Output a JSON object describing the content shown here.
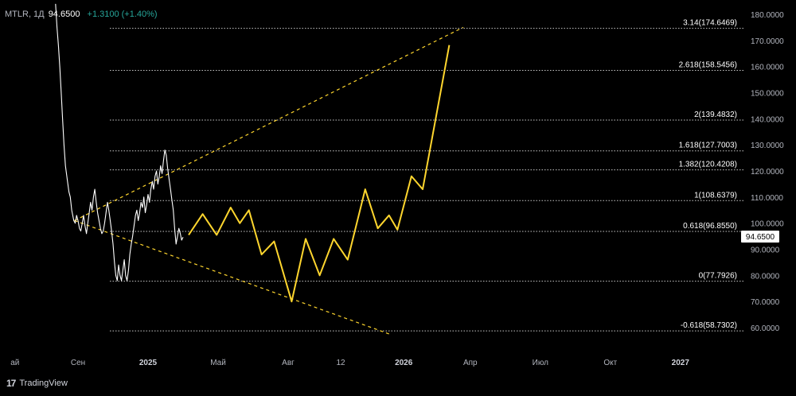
{
  "header": {
    "symbol": "MTLR, 1Д",
    "price": "94.6500",
    "change": "+1.3100 (+1.40%)"
  },
  "brand": {
    "name": "TradingView",
    "logo_icon": "tradingview-logo-icon"
  },
  "last_price_badge": "94.6500",
  "colors": {
    "background": "#000000",
    "price_line": "#ffffff",
    "forecast_line": "#ffd62e",
    "fib_line": "#c8c8c8",
    "axis_text": "#b2b5be"
  },
  "chart_data": {
    "type": "line",
    "y_axis": {
      "range": [
        54,
        183
      ],
      "ticks": [
        "180.0000",
        "170.0000",
        "160.0000",
        "150.0000",
        "140.0000",
        "130.0000",
        "120.0000",
        "110.0000",
        "100.0000",
        "90.0000",
        "80.0000",
        "70.0000",
        "60.0000"
      ]
    },
    "x_axis": {
      "ticks": [
        {
          "label": "ай",
          "pos": 0.1
        },
        {
          "label": "Сен",
          "pos": 1.0
        },
        {
          "label": "2025",
          "pos": 2.0
        },
        {
          "label": "Май",
          "pos": 3.0
        },
        {
          "label": "Авг",
          "pos": 4.0
        },
        {
          "label": "12",
          "pos": 4.75
        },
        {
          "label": "2026",
          "pos": 5.65
        },
        {
          "label": "Апр",
          "pos": 6.6
        },
        {
          "label": "Июл",
          "pos": 7.6
        },
        {
          "label": "Окт",
          "pos": 8.6
        },
        {
          "label": "2027",
          "pos": 9.6
        }
      ]
    },
    "fib_levels": [
      {
        "label": "3.14(174.6469)",
        "value": 174.6469
      },
      {
        "label": "2.618(158.5456)",
        "value": 158.5456
      },
      {
        "label": "2(139.4832)",
        "value": 139.4832
      },
      {
        "label": "1.618(127.7003)",
        "value": 127.7003
      },
      {
        "label": "1.382(120.4208)",
        "value": 120.4208
      },
      {
        "label": "1(108.6379)",
        "value": 108.6379
      },
      {
        "label": "0.618(96.8550)",
        "value": 96.855
      },
      {
        "label": "0(77.7926)",
        "value": 77.7926
      },
      {
        "label": "-0.618(58.7302)",
        "value": 58.7302
      }
    ],
    "series": [
      {
        "kind": "price",
        "points": [
          [
            0.68,
            184
          ],
          [
            0.7,
            175
          ],
          [
            0.72,
            168
          ],
          [
            0.74,
            160
          ],
          [
            0.76,
            150
          ],
          [
            0.78,
            140
          ],
          [
            0.8,
            130
          ],
          [
            0.82,
            122
          ],
          [
            0.85,
            116
          ],
          [
            0.87,
            112
          ],
          [
            0.89,
            110
          ],
          [
            0.91,
            105
          ],
          [
            0.94,
            101
          ],
          [
            0.96,
            100
          ],
          [
            0.98,
            103
          ],
          [
            1.0,
            101
          ],
          [
            1.02,
            98
          ],
          [
            1.04,
            97
          ],
          [
            1.06,
            100
          ],
          [
            1.08,
            103
          ],
          [
            1.1,
            99
          ],
          [
            1.12,
            96
          ],
          [
            1.14,
            100
          ],
          [
            1.16,
            104
          ],
          [
            1.18,
            108
          ],
          [
            1.2,
            105
          ],
          [
            1.22,
            110
          ],
          [
            1.24,
            113
          ],
          [
            1.26,
            108
          ],
          [
            1.28,
            104
          ],
          [
            1.3,
            101
          ],
          [
            1.32,
            98
          ],
          [
            1.34,
            96
          ],
          [
            1.36,
            97
          ],
          [
            1.38,
            100
          ],
          [
            1.4,
            104
          ],
          [
            1.42,
            108
          ],
          [
            1.44,
            105
          ],
          [
            1.46,
            101
          ],
          [
            1.48,
            97
          ],
          [
            1.5,
            92
          ],
          [
            1.52,
            85
          ],
          [
            1.54,
            80
          ],
          [
            1.56,
            78
          ],
          [
            1.58,
            84
          ],
          [
            1.6,
            80
          ],
          [
            1.62,
            78
          ],
          [
            1.64,
            82
          ],
          [
            1.66,
            86
          ],
          [
            1.68,
            80
          ],
          [
            1.7,
            78
          ],
          [
            1.72,
            82
          ],
          [
            1.74,
            88
          ],
          [
            1.76,
            92
          ],
          [
            1.78,
            95
          ],
          [
            1.8,
            99
          ],
          [
            1.82,
            103
          ],
          [
            1.84,
            105
          ],
          [
            1.86,
            101
          ],
          [
            1.88,
            104
          ],
          [
            1.9,
            108
          ],
          [
            1.92,
            106
          ],
          [
            1.94,
            110
          ],
          [
            1.96,
            104
          ],
          [
            1.98,
            107
          ],
          [
            2.0,
            111
          ],
          [
            2.02,
            108
          ],
          [
            2.04,
            113
          ],
          [
            2.06,
            116
          ],
          [
            2.08,
            113
          ],
          [
            2.1,
            118
          ],
          [
            2.12,
            120
          ],
          [
            2.14,
            115
          ],
          [
            2.16,
            118
          ],
          [
            2.18,
            122
          ],
          [
            2.2,
            119
          ],
          [
            2.22,
            124
          ],
          [
            2.24,
            128
          ],
          [
            2.26,
            126
          ],
          [
            2.28,
            121
          ],
          [
            2.3,
            117
          ],
          [
            2.32,
            113
          ],
          [
            2.34,
            109
          ],
          [
            2.36,
            105
          ],
          [
            2.38,
            98
          ],
          [
            2.4,
            92
          ],
          [
            2.42,
            95
          ],
          [
            2.44,
            98
          ],
          [
            2.46,
            96
          ],
          [
            2.48,
            93.5
          ],
          [
            2.5,
            94.65
          ]
        ]
      },
      {
        "kind": "forecast",
        "points": [
          [
            2.58,
            95.5
          ],
          [
            2.78,
            103.5
          ],
          [
            2.98,
            95.5
          ],
          [
            3.18,
            106
          ],
          [
            3.31,
            100
          ],
          [
            3.44,
            105
          ],
          [
            3.62,
            88
          ],
          [
            3.8,
            93
          ],
          [
            4.05,
            70
          ],
          [
            4.25,
            94
          ],
          [
            4.45,
            80
          ],
          [
            4.65,
            94
          ],
          [
            4.85,
            86
          ],
          [
            5.1,
            113
          ],
          [
            5.28,
            98
          ],
          [
            5.44,
            103
          ],
          [
            5.56,
            97.5
          ],
          [
            5.76,
            118
          ],
          [
            5.92,
            113
          ],
          [
            6.3,
            168.2
          ]
        ]
      }
    ],
    "trendlines": [
      {
        "from": [
          0.95,
          101
        ],
        "to": [
          6.5,
          175
        ]
      },
      {
        "from": [
          0.95,
          101
        ],
        "to": [
          5.45,
          57.5
        ]
      }
    ]
  }
}
